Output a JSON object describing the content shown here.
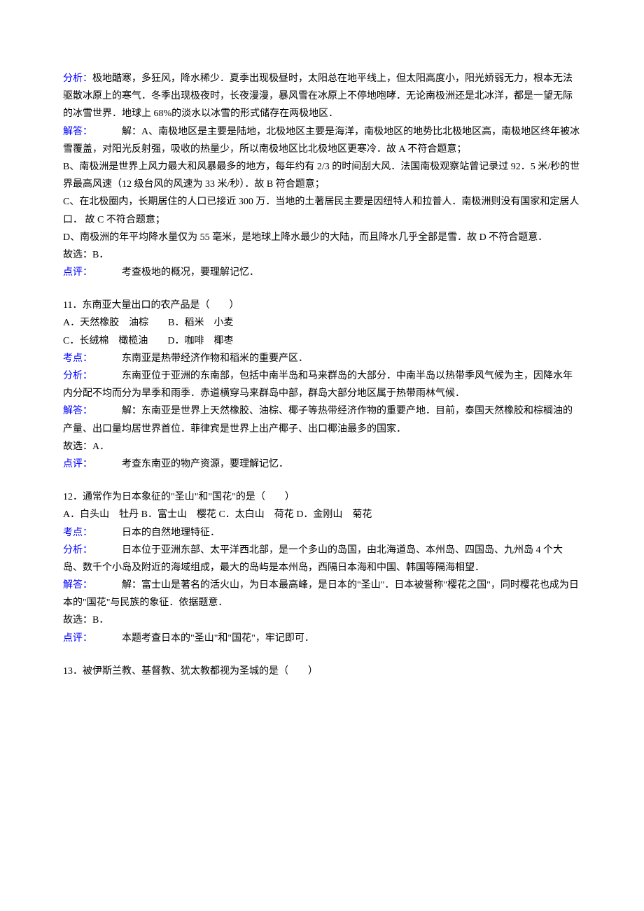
{
  "q10": {
    "analysis_label": "分析：",
    "analysis_text": "极地酷寒，多狂风，降水稀少．夏季出现极昼时，太阳总在地平线上，但太阳高度小，阳光娇弱无力，根本无法驱散冰原上的寒气．冬季出现极夜时，长夜漫漫，暴风雪在冰原上不停地咆哮．无论南极洲还是北冰洋，都是一望无际的冰雪世界．地球上 68%的淡水以冰雪的形式储存在两极地区．",
    "answer_label": "解答：",
    "answer_intro": "解：A、南极地区是主要是陆地，北极地区主要是海洋，南极地区的地势比北极地区高，南极地区终年被冰雪覆盖，对阳光反射强，吸收的热量少，所以南极地区比北极地区更寒冷．故 A 不符合题意；",
    "answer_b": "B、南极洲是世界上风力最大和风暴最多的地方，每年约有 2/3 的时间刮大风．法国南极观察站曾记录过 92．5 米/秒的世界最高风速（12 级台风的风速为 33 米/秒）．故 B 符合题意；",
    "answer_c": "C、在北极圈内，长期居住的人口已接近 300 万．当地的土著居民主要是因纽特人和拉普人．南极洲则没有国家和定居人口．  故 C 不符合题意；",
    "answer_d": "D、南极洲的年平均降水量仅为 55 毫米，是地球上降水最少的大陆，而且降水几乎全部是雪．故 D 不符合题意．",
    "answer_final": "故选：B．",
    "review_label": "点评：",
    "review_text": "考查极地的概况，要理解记忆．"
  },
  "q11": {
    "title": "11．东南亚大量出口的农产品是（　　）",
    "option_a": "A．天然橡胶　油棕",
    "option_b": "B．稻米　小麦",
    "option_c": "C．长绒棉　橄榄油",
    "option_d": "D．咖啡　椰枣",
    "point_label": "考点：",
    "point_text": "东南亚是热带经济作物和稻米的重要产区．",
    "analysis_label": "分析：",
    "analysis_text": "东南亚位于亚洲的东南部，包括中南半岛和马来群岛的大部分．中南半岛以热带季风气候为主，因降水年内分配不均而分为旱季和雨季．赤道横穿马来群岛中部，群岛大部分地区属于热带雨林气候．",
    "answer_label": "解答：",
    "answer_text": "解：东南亚是世界上天然橡胶、油棕、椰子等热带经济作物的重要产地．目前，泰国天然橡胶和棕榈油的产量、出口量均居世界首位．菲律宾是世界上出产椰子、出口椰油最多的国家．",
    "answer_final": "故选：A．",
    "review_label": "点评：",
    "review_text": "考查东南亚的物产资源，要理解记忆．"
  },
  "q12": {
    "title": "12．通常作为日本象征的\"圣山\"和\"国花\"的是（　　）",
    "option_a": "A．白头山　牡丹",
    "option_b": "B．富士山　樱花",
    "option_c": "C．太白山　荷花",
    "option_d": "D．金刚山　菊花",
    "point_label": "考点：",
    "point_text": "日本的自然地理特征．",
    "analysis_label": "分析：",
    "analysis_text": "日本位于亚洲东部、太平洋西北部，是一个多山的岛国，由北海道岛、本州岛、四国岛、九州岛 4 个大岛、数千个小岛及附近的海域组成，最大的岛屿是本州岛，西隔日本海和中国、韩国等隔海相望．",
    "answer_label": "解答：",
    "answer_text": "解：富士山是著名的活火山，为日本最高峰，是日本的\"圣山\"．日本被誉称\"樱花之国\"，同时樱花也成为日本的\"国花\"与民族的象征．依据题意．",
    "answer_final": "故选：B．",
    "review_label": "点评：",
    "review_text": "本题考查日本的\"圣山\"和\"国花\"，牢记即可．"
  },
  "q13": {
    "title": "13．被伊斯兰教、基督教、犹太教都视为圣城的是（　　）"
  }
}
